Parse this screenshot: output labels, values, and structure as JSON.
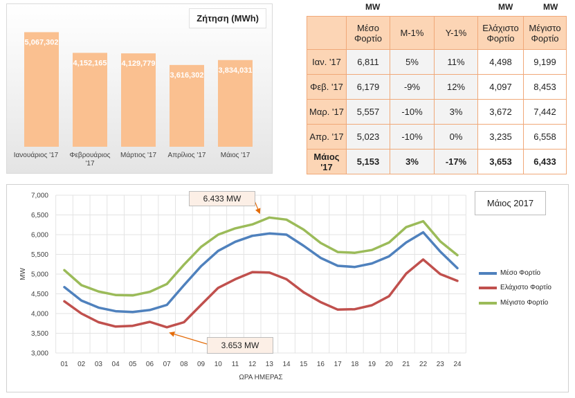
{
  "chart_data": [
    {
      "type": "bar",
      "title": "Ζήτηση (MWh)",
      "categories": [
        "Ιανουάριος '17",
        "Φεβρουάριος '17",
        "Μάρτιος '17",
        "Απρίλιος '17",
        "Μάιος '17"
      ],
      "category_lines": [
        [
          "Ιανουάριος '17"
        ],
        [
          "Φεβρουάριος",
          "'17"
        ],
        [
          "Μάρτιος '17"
        ],
        [
          "Απρίλιος '17"
        ],
        [
          "Μάιος '17"
        ]
      ],
      "values": [
        5067302,
        4152165,
        4129779,
        3616302,
        3834031
      ],
      "value_labels": [
        "5,067,302",
        "4,152,165",
        "4,129,779",
        "3,616,302",
        "3,834,031"
      ],
      "bar_color": "#fac090",
      "ylim": [
        0,
        6000000
      ]
    },
    {
      "type": "table",
      "unit_labels": [
        "MW",
        "MW",
        "MW"
      ],
      "columns": [
        "",
        "Μέσο Φορτίο",
        "Μ-1%",
        "Υ-1%",
        "Ελάχιστο Φορτίο",
        "Μέγιστο Φορτίο"
      ],
      "rows": [
        [
          "Ιαν. '17",
          "6,811",
          "5%",
          "11%",
          "4,498",
          "9,199"
        ],
        [
          "Φεβ. '17",
          "6,179",
          "-9%",
          "12%",
          "4,097",
          "8,453"
        ],
        [
          "Μαρ. '17",
          "5,557",
          "-10%",
          "3%",
          "3,672",
          "7,442"
        ],
        [
          "Απρ. '17",
          "5,023",
          "-10%",
          "0%",
          "3,235",
          "6,558"
        ],
        [
          "Μάιος '17",
          "5,153",
          "3%",
          "-17%",
          "3,653",
          "6,433"
        ]
      ]
    },
    {
      "type": "line",
      "title": "Μάιος 2017",
      "xlabel": "ΩΡΑ ΗΜΕΡΑΣ",
      "ylabel": "MW",
      "x": [
        "01",
        "02",
        "03",
        "04",
        "05",
        "06",
        "07",
        "08",
        "09",
        "10",
        "11",
        "12",
        "13",
        "14",
        "15",
        "16",
        "17",
        "18",
        "19",
        "20",
        "21",
        "22",
        "23",
        "24"
      ],
      "ylim": [
        3000,
        7000
      ],
      "yticks": [
        "3,000",
        "3,500",
        "4,000",
        "4,500",
        "5,000",
        "5,500",
        "6,000",
        "6,500",
        "7,000"
      ],
      "grid": true,
      "legend_position": "right",
      "series": [
        {
          "name": "Μέσο Φορτίο",
          "color": "#4f81bd",
          "values": [
            4670,
            4330,
            4150,
            4060,
            4040,
            4090,
            4220,
            4720,
            5200,
            5590,
            5820,
            5970,
            6030,
            6000,
            5720,
            5410,
            5210,
            5180,
            5270,
            5450,
            5800,
            6060,
            5570,
            5150
          ]
        },
        {
          "name": "Ελάχιστο Φορτίο",
          "color": "#c0504d",
          "values": [
            4310,
            4000,
            3780,
            3670,
            3690,
            3790,
            3653,
            3780,
            4220,
            4650,
            4870,
            5050,
            5040,
            4870,
            4540,
            4290,
            4100,
            4110,
            4210,
            4440,
            5010,
            5370,
            5000,
            4830
          ]
        },
        {
          "name": "Μέγιστο Φορτίο",
          "color": "#9bbb59",
          "values": [
            5100,
            4720,
            4560,
            4470,
            4460,
            4550,
            4750,
            5240,
            5690,
            6000,
            6160,
            6260,
            6433,
            6380,
            6130,
            5790,
            5560,
            5540,
            5610,
            5800,
            6190,
            6340,
            5830,
            5480
          ]
        }
      ],
      "annotations": [
        {
          "text": "6.433 MW",
          "series": 2,
          "index": 12
        },
        {
          "text": "3.653 MW",
          "series": 1,
          "index": 6
        }
      ]
    }
  ]
}
